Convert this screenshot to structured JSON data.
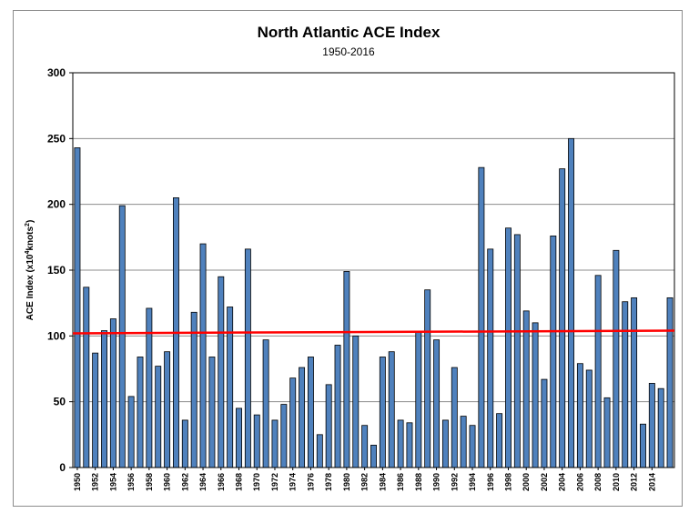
{
  "chart_data": {
    "type": "bar",
    "title": "North Atlantic ACE Index",
    "subtitle": "1950-2016",
    "ylabel_main": "ACE Index (x10",
    "ylabel_sup1": "4",
    "ylabel_mid": "knots",
    "ylabel_sup2": "2",
    "ylabel_end": ")",
    "ylim": [
      0,
      300
    ],
    "yticks": [
      0,
      50,
      100,
      150,
      200,
      250,
      300
    ],
    "grid": true,
    "bar_color": "#4f81bd",
    "trend_color": "#ff0000",
    "trend": {
      "start_value": 102,
      "end_value": 104
    },
    "categories": [
      1950,
      1951,
      1952,
      1953,
      1954,
      1955,
      1956,
      1957,
      1958,
      1959,
      1960,
      1961,
      1962,
      1963,
      1964,
      1965,
      1966,
      1967,
      1968,
      1969,
      1970,
      1971,
      1972,
      1973,
      1974,
      1975,
      1976,
      1977,
      1978,
      1979,
      1980,
      1981,
      1982,
      1983,
      1984,
      1985,
      1986,
      1987,
      1988,
      1989,
      1990,
      1991,
      1992,
      1993,
      1994,
      1995,
      1996,
      1997,
      1998,
      1999,
      2000,
      2001,
      2002,
      2003,
      2004,
      2005,
      2006,
      2007,
      2008,
      2009,
      2010,
      2011,
      2012,
      2013,
      2014,
      2015,
      2016
    ],
    "values": [
      243,
      137,
      87,
      104,
      113,
      199,
      54,
      84,
      121,
      77,
      88,
      205,
      36,
      118,
      170,
      84,
      145,
      122,
      45,
      166,
      40,
      97,
      36,
      48,
      68,
      76,
      84,
      25,
      63,
      93,
      149,
      100,
      32,
      17,
      84,
      88,
      36,
      34,
      103,
      135,
      97,
      36,
      76,
      39,
      32,
      228,
      166,
      41,
      182,
      177,
      119,
      110,
      67,
      176,
      227,
      250,
      79,
      74,
      146,
      53,
      165,
      126,
      129,
      33,
      64,
      60,
      129
    ],
    "xtick_labels": [
      "1950",
      "1952",
      "1954",
      "1956",
      "1958",
      "1960",
      "1962",
      "1964",
      "1966",
      "1968",
      "1970",
      "1972",
      "1974",
      "1976",
      "1978",
      "1980",
      "1982",
      "1984",
      "1986",
      "1988",
      "1990",
      "1992",
      "1994",
      "1996",
      "1998",
      "2000",
      "2002",
      "2004",
      "2006",
      "2008",
      "2010",
      "2012",
      "2014"
    ]
  }
}
